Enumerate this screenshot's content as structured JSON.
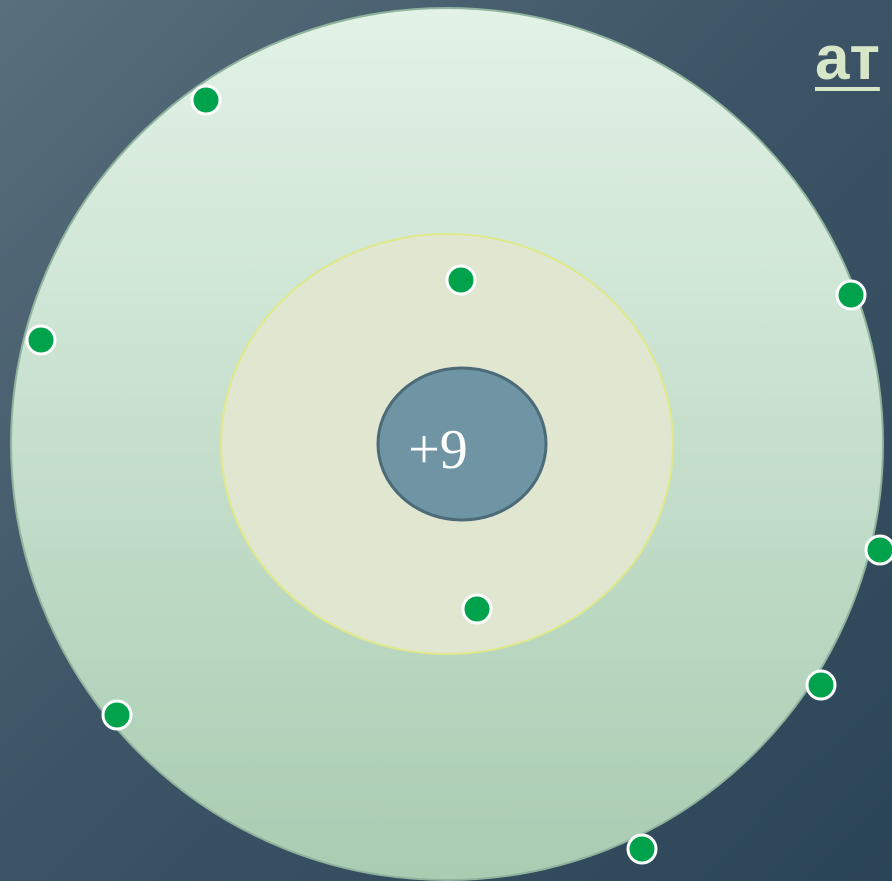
{
  "title": "ат",
  "atom": {
    "nucleus_charge": "+9",
    "shells": [
      {
        "name": "inner-shell",
        "electron_count": 2
      },
      {
        "name": "outer-shell",
        "electron_count": 7
      }
    ]
  },
  "colors": {
    "background": "#3d5566",
    "outer_shell": "#c5e1cd",
    "inner_shell": "#e0e6cf",
    "nucleus": "#6f95a4",
    "electron": "#00a34c",
    "title": "#d8e6c8"
  }
}
